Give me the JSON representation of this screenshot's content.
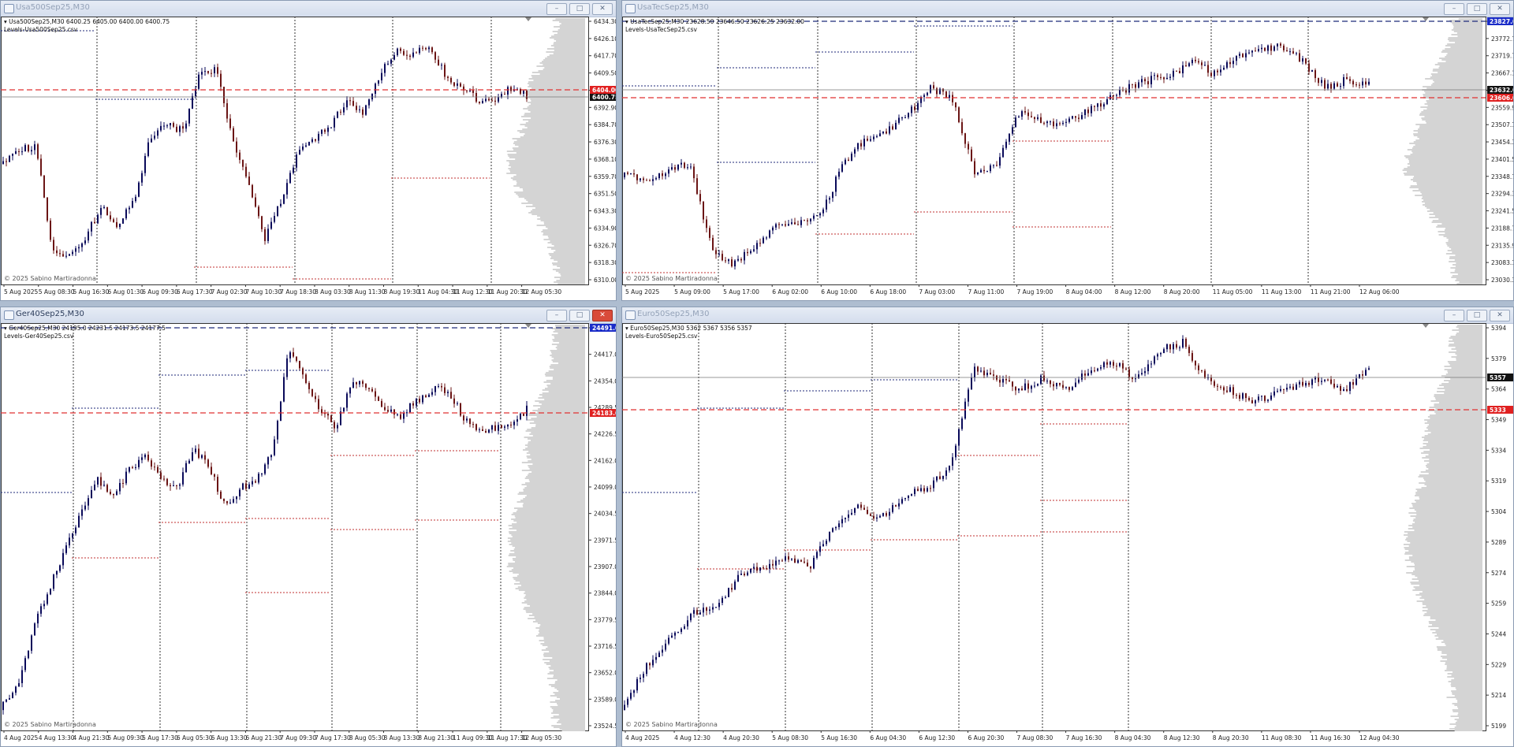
{
  "windows": [
    {
      "title": "Usa500Sep25,M30",
      "info_line": "Usa500Sep25,M30  6400.25 6405.00 6400.00 6400.75",
      "levels_file": "Levels-Usa500Sep25.csv",
      "copyright": "© 2025 Sabino Martiradonna",
      "price_ticks": [
        "6434.30",
        "6426.10",
        "6417.70",
        "6409.50",
        "6401.10",
        "6392.90",
        "6384.70",
        "6376.30",
        "6368.10",
        "6359.70",
        "6351.50",
        "6343.30",
        "6334.90",
        "6326.70",
        "6318.30",
        "6310.00"
      ],
      "time_ticks": [
        "5 Aug 2025",
        "5 Aug 08:30",
        "5 Aug 16:30",
        "6 Aug 01:30",
        "6 Aug 09:30",
        "6 Aug 17:30",
        "7 Aug 02:30",
        "7 Aug 10:30",
        "7 Aug 18:30",
        "8 Aug 03:30",
        "8 Aug 11:30",
        "8 Aug 19:30",
        "11 Aug 04:30",
        "11 Aug 12:30",
        "11 Aug 20:30",
        "12 Aug 05:30"
      ],
      "red_tag": "6404.00",
      "current_tag": "6400.75",
      "buttons": {
        "minimize": "–",
        "maximize": "□",
        "close": "✕"
      }
    },
    {
      "title": "UsaTecSep25,M30",
      "info_line": "UsaTecSep25,M30  23628.50 23646.50 23626.25 23632.00",
      "levels_file": "Levels-UsaTecSep25.csv",
      "copyright": "© 2025 Sabino Martiradonna",
      "price_ticks": [
        "23827.00",
        "23772.70",
        "23719.75",
        "23667.10",
        "23612.75",
        "23559.90",
        "23507.10",
        "23454.30",
        "23401.50",
        "23348.70",
        "23294.30",
        "23241.50",
        "23188.70",
        "23135.90",
        "23083.10",
        "23030.30"
      ],
      "time_ticks": [
        "5 Aug 2025",
        "5 Aug 09:00",
        "5 Aug 17:00",
        "6 Aug 02:00",
        "6 Aug 10:00",
        "6 Aug 18:00",
        "7 Aug 03:00",
        "7 Aug 11:00",
        "7 Aug 19:00",
        "8 Aug 04:00",
        "8 Aug 12:00",
        "8 Aug 20:00",
        "11 Aug 05:00",
        "11 Aug 13:00",
        "11 Aug 21:00",
        "12 Aug 06:00"
      ],
      "top_tag": "23827.00",
      "current_tag": "23632.00",
      "red_tag": "23606.00",
      "buttons": {
        "minimize": "–",
        "maximize": "□",
        "close": "✕"
      }
    },
    {
      "title": "Ger40Sep25,M30",
      "info_line": "Ger40Sep25,M30  24195.0 24231.5 24173.5 24177.5",
      "levels_file": "Levels-Ger40Sep25.csv",
      "copyright": "© 2025 Sabino Martiradonna",
      "price_ticks": [
        "24491.0",
        "24417.0",
        "24354.0",
        "24289.5",
        "24226.5",
        "24162.0",
        "24099.0",
        "24034.5",
        "23971.5",
        "23907.0",
        "23844.0",
        "23779.5",
        "23716.5",
        "23652.0",
        "23589.0",
        "23524.5"
      ],
      "time_ticks": [
        "4 Aug 2025",
        "4 Aug 13:30",
        "4 Aug 21:30",
        "5 Aug 09:30",
        "5 Aug 17:30",
        "6 Aug 05:30",
        "6 Aug 13:30",
        "6 Aug 21:30",
        "7 Aug 09:30",
        "7 Aug 17:30",
        "8 Aug 05:30",
        "8 Aug 13:30",
        "8 Aug 21:30",
        "11 Aug 09:30",
        "11 Aug 17:30",
        "12 Aug 05:30"
      ],
      "top_tag": "24491.0",
      "red_tag": "24183.0",
      "buttons": {
        "minimize": "–",
        "maximize": "□",
        "close": "✕"
      }
    },
    {
      "title": "Euro50Sep25,M30",
      "info_line": "Euro50Sep25,M30  5362 5367 5356 5357",
      "levels_file": "Levels-Euro50Sep25.csv",
      "copyright": "© 2025 Sabino Martiradonna",
      "price_ticks": [
        "5394",
        "5379",
        "5364",
        "5349",
        "5334",
        "5319",
        "5304",
        "5289",
        "5274",
        "5259",
        "5244",
        "5229",
        "5214",
        "5199"
      ],
      "time_ticks": [
        "4 Aug 2025",
        "4 Aug 12:30",
        "4 Aug 20:30",
        "5 Aug 08:30",
        "5 Aug 16:30",
        "6 Aug 04:30",
        "6 Aug 12:30",
        "6 Aug 20:30",
        "7 Aug 08:30",
        "7 Aug 16:30",
        "8 Aug 04:30",
        "8 Aug 12:30",
        "8 Aug 20:30",
        "11 Aug 08:30",
        "11 Aug 16:30",
        "12 Aug 04:30"
      ],
      "current_tag": "5357",
      "red_tag": "5333",
      "buttons": {
        "minimize": "–",
        "maximize": "□",
        "close": "✕"
      }
    }
  ],
  "colors": {
    "bull": "#0a0a5a",
    "bear": "#6b1515",
    "red_line": "#e03030",
    "profile": "#d4d4d4",
    "navy_level": "#1f2a7a",
    "red_level": "#c03030"
  }
}
